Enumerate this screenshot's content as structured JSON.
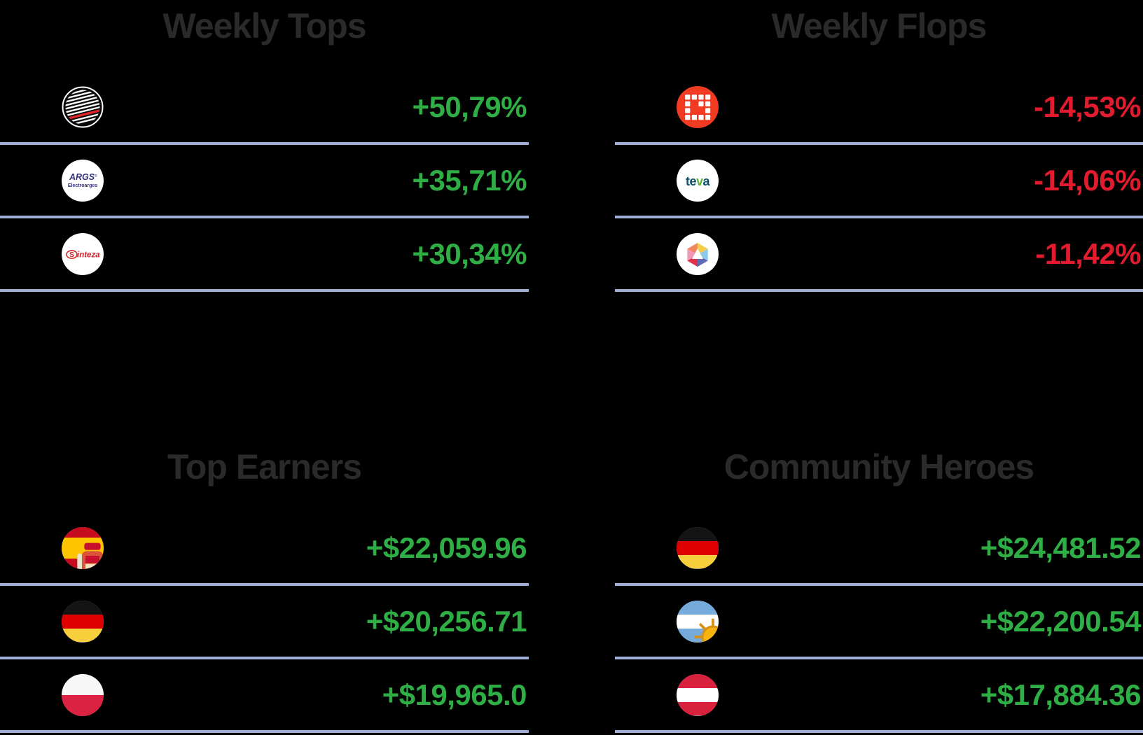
{
  "colors": {
    "background": "#000000",
    "title": "#2a2a2d",
    "gain": "#2fae45",
    "loss": "#e31b2e",
    "divider": "#9fafd3"
  },
  "sections": [
    {
      "title": "Weekly Tops",
      "rows": [
        {
          "icon": "globe-stripes-logo",
          "value": "+50,79%",
          "trend": "up"
        },
        {
          "icon": "electroarges-logo",
          "value": "+35,71%",
          "trend": "up"
        },
        {
          "icon": "sinteza-logo",
          "value": "+30,34%",
          "trend": "up"
        }
      ]
    },
    {
      "title": "Weekly Flops",
      "rows": [
        {
          "icon": "red-grid-logo",
          "value": "-14,53%",
          "trend": "down"
        },
        {
          "icon": "teva-logo",
          "value": "-14,06%",
          "trend": "down"
        },
        {
          "icon": "prism-hexagon-logo",
          "value": "-11,42%",
          "trend": "down"
        }
      ]
    },
    {
      "title": "Top Earners",
      "rows": [
        {
          "icon": "spain-flag",
          "value": "+$22,059.96",
          "trend": "up"
        },
        {
          "icon": "germany-flag",
          "value": "+$20,256.71",
          "trend": "up"
        },
        {
          "icon": "poland-flag",
          "value": "+$19,965.0",
          "trend": "up"
        }
      ]
    },
    {
      "title": "Community Heroes",
      "rows": [
        {
          "icon": "germany-flag",
          "value": "+$24,481.52",
          "trend": "up"
        },
        {
          "icon": "argentina-flag",
          "value": "+$22,200.54",
          "trend": "up"
        },
        {
          "icon": "austria-flag",
          "value": "+$17,884.36",
          "trend": "up"
        }
      ]
    }
  ]
}
